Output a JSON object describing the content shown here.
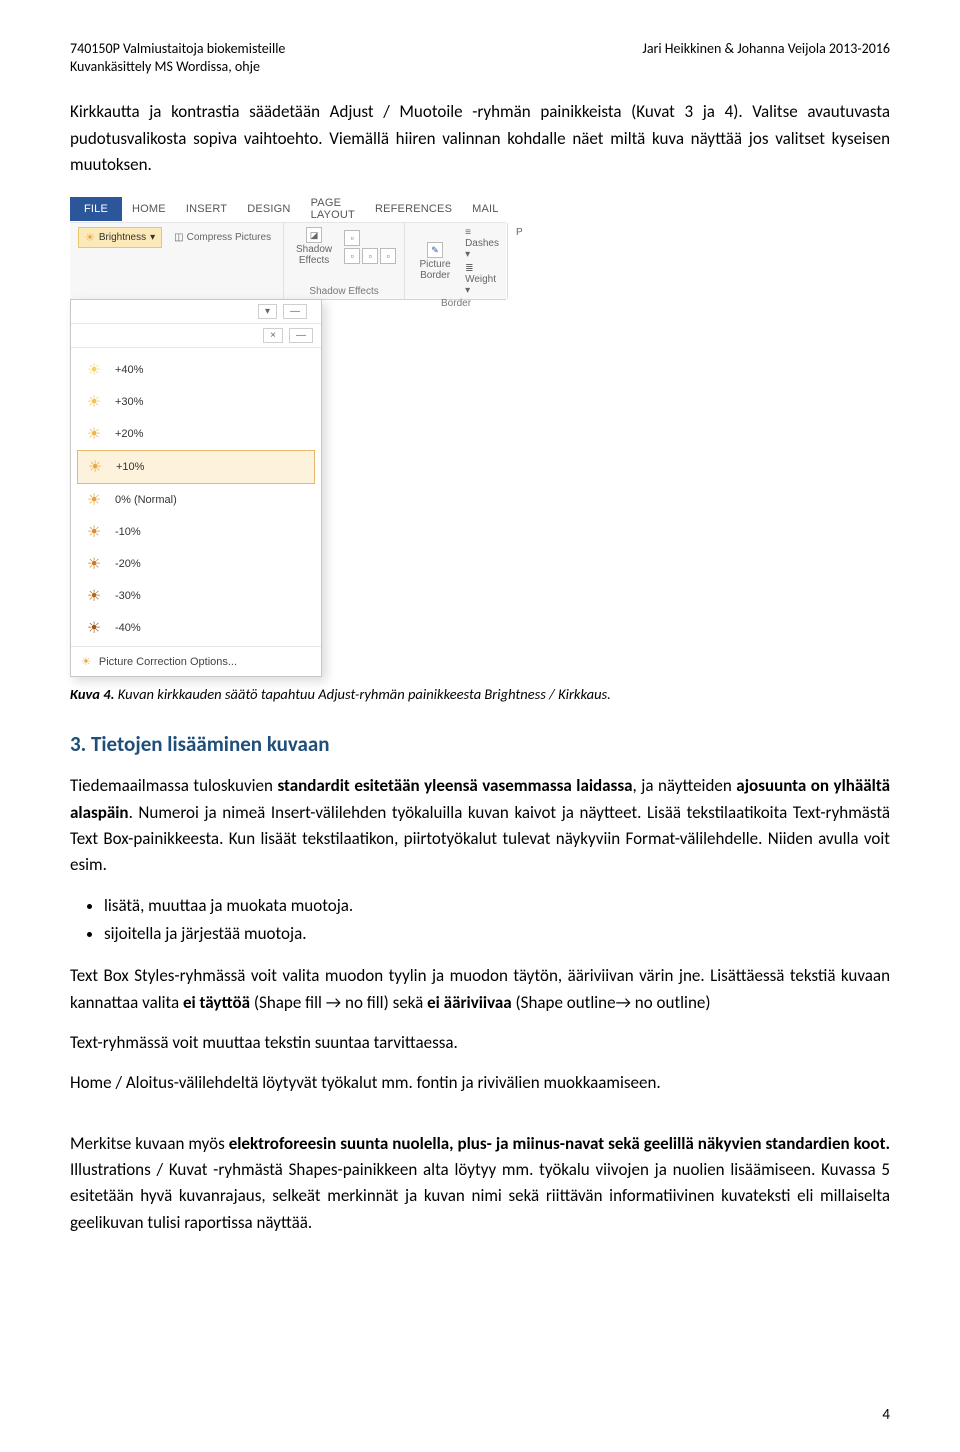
{
  "header": {
    "course_code": "740150P Valmiustaitoja biokemisteille",
    "subtitle": "Kuvankäsittely MS Wordissa, ohje",
    "authors_years": "Jari Heikkinen & Johanna Veijola  2013-2016"
  },
  "intro_paragraph": "Kirkkautta ja kontrastia säädetään Adjust / Muotoile -ryhmän painikkeista (Kuvat 3 ja 4). Valitse avautuvasta pudotusvalikosta sopiva vaihtoehto. Viemällä hiiren valinnan kohdalle näet miltä kuva näyttää jos valitset kyseisen muutoksen.",
  "ribbon": {
    "tabs": [
      "FILE",
      "HOME",
      "INSERT",
      "DESIGN",
      "PAGE LAYOUT",
      "REFERENCES",
      "MAIL"
    ],
    "brightness_label": "Brightness",
    "compress_label": "Compress Pictures",
    "shadow_effects": "Shadow Effects",
    "shadow_effects_label": "Shadow Effects",
    "picture_border": "Picture Border",
    "border_label": "Border",
    "dashes": "Dashes",
    "weight": "Weight",
    "p": "P"
  },
  "brightness_menu": {
    "options": [
      {
        "label": "+40%",
        "color": "#f6d26b"
      },
      {
        "label": "+30%",
        "color": "#f3c35a"
      },
      {
        "label": "+20%",
        "color": "#efb44c"
      },
      {
        "label": "+10%",
        "color": "#eca742",
        "selected": true
      },
      {
        "label": "0% (Normal)",
        "color": "#e8a33d"
      },
      {
        "label": "-10%",
        "color": "#d98f30"
      },
      {
        "label": "-20%",
        "color": "#c97c25"
      },
      {
        "label": "-30%",
        "color": "#b76a1c"
      },
      {
        "label": "-40%",
        "color": "#a05813"
      }
    ],
    "footer": "Picture Correction Options...",
    "close_x": "×",
    "dash": "—",
    "chev": "▾"
  },
  "caption": {
    "prefix": "Kuva 4.",
    "text": " Kuvan kirkkauden säätö tapahtuu Adjust-ryhmän painikkeesta Brightness / Kirkkaus."
  },
  "section3": {
    "heading": "3.  Tietojen lisääminen kuvaan",
    "para1_a": "Tiedemaailmassa tuloskuvien ",
    "para1_b": "standardit esitetään yleensä vasemmassa laidassa",
    "para1_c": ", ja näytteiden ",
    "para1_d": "ajosuunta on ylhäältä alaspäin",
    "para1_e": ". Numeroi ja nimeä Insert-välilehden työkaluilla kuvan kaivot ja näytteet. Lisää tekstilaatikoita Text-ryhmästä Text Box-painikkeesta. Kun lisäät tekstilaatikon, piirtotyökalut tulevat näykyviin Format-välilehdelle. Niiden avulla voit esim.",
    "bullets": [
      "lisätä, muuttaa ja muokata muotoja.",
      "sijoitella ja järjestää muotoja."
    ],
    "para2_a": "Text Box Styles-ryhmässä voit valita muodon tyylin ja muodon täytön, ääriviivan värin jne. Lisättäessä tekstiä kuvaan kannattaa valita ",
    "para2_b": "ei täyttöä",
    "para2_c": " (Shape fill → no fill) sekä ",
    "para2_d": "ei ääriviivaa",
    "para2_e": " (Shape outline→ no outline)",
    "para3": "Text-ryhmässä voit muuttaa tekstin suuntaa tarvittaessa.",
    "para4": "Home / Aloitus-välilehdeltä löytyvät työkalut mm. fontin ja rivivälien muokkaamiseen.",
    "para5_a": "Merkitse kuvaan myös ",
    "para5_b": "elektroforeesin suunta nuolella, plus- ja miinus-navat sekä geelillä näkyvien standardien koot.",
    "para5_c": " Illustrations / Kuvat -ryhmästä Shapes-painikkeen alta löytyy mm. työkalu viivojen ja nuolien lisäämiseen. Kuvassa 5 esitetään hyvä kuvanrajaus, selkeät merkinnät ja kuvan nimi sekä riittävän informatiivinen kuvateksti eli millaiselta geelikuvan tulisi raportissa näyttää."
  },
  "page_number": "4"
}
